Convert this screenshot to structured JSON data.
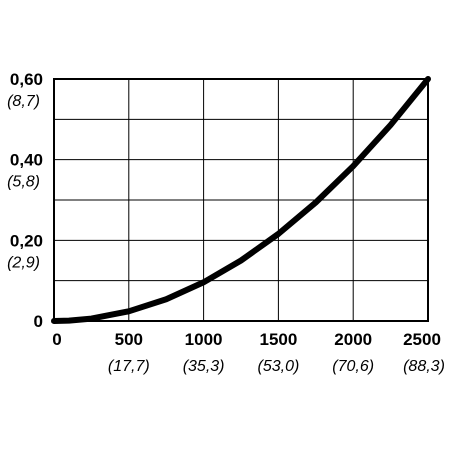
{
  "chart_data": {
    "type": "line",
    "title": "",
    "xlabel": "",
    "ylabel": "",
    "xlim": [
      0,
      2500
    ],
    "ylim": [
      0,
      0.6
    ],
    "grid": true,
    "x_ticks": [
      {
        "value": 0,
        "label": "0",
        "sublabel": ""
      },
      {
        "value": 500,
        "label": "500",
        "sublabel": "(17,7)"
      },
      {
        "value": 1000,
        "label": "1000",
        "sublabel": "(35,3)"
      },
      {
        "value": 1500,
        "label": "1500",
        "sublabel": "(53,0)"
      },
      {
        "value": 2000,
        "label": "2000",
        "sublabel": "(70,6)"
      },
      {
        "value": 2500,
        "label": "2500",
        "sublabel": "(88,3)"
      }
    ],
    "y_ticks": [
      {
        "value": 0,
        "label": "0",
        "sublabel": ""
      },
      {
        "value": 0.2,
        "label": "0,20",
        "sublabel": "(2,9)"
      },
      {
        "value": 0.4,
        "label": "0,40",
        "sublabel": "(5,8)"
      },
      {
        "value": 0.6,
        "label": "0,60",
        "sublabel": "(8,7)"
      }
    ],
    "series": [
      {
        "x": [
          0,
          100,
          250,
          500,
          750,
          1000,
          1250,
          1500,
          1750,
          2000,
          2250,
          2500
        ],
        "y": [
          0,
          0.001,
          0.006,
          0.024,
          0.054,
          0.096,
          0.15,
          0.216,
          0.294,
          0.384,
          0.486,
          0.6
        ],
        "color": "#000000"
      }
    ]
  }
}
